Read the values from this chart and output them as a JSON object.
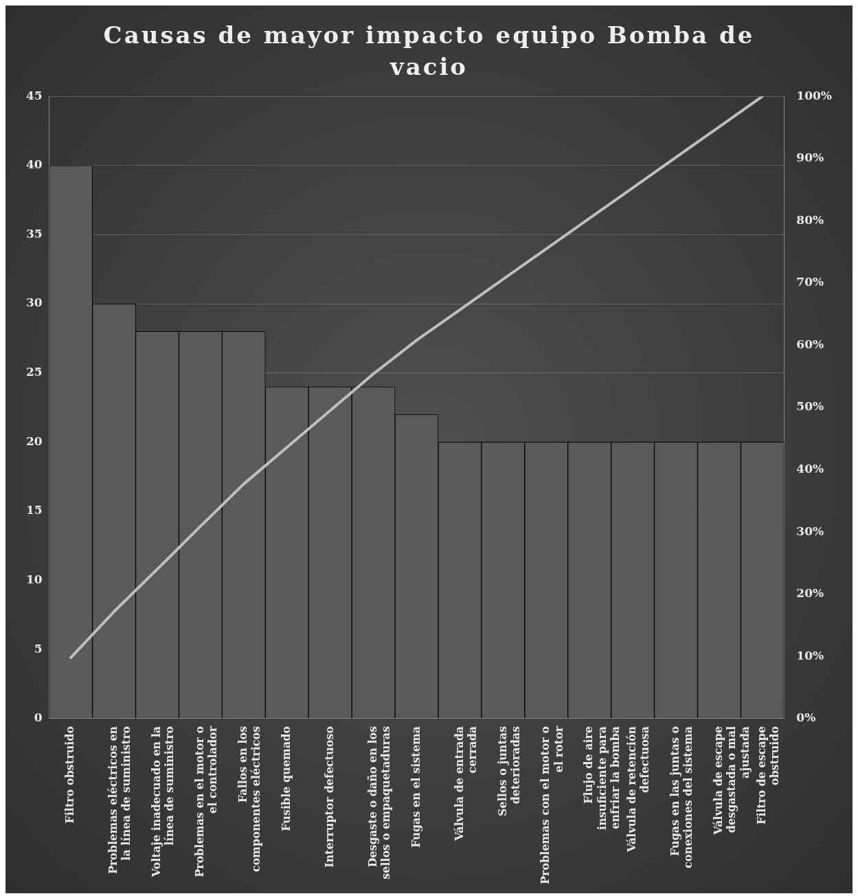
{
  "chart_data": {
    "type": "bar",
    "title": "Causas de mayor impacto equipo Bomba de vacio",
    "categories": [
      "Filtro obstruido",
      "Problemas eléctricos en la línea de suministro",
      "Voltaje inadecuado en la línea de suministro",
      "Problemas en el motor o el controlador",
      "Fallos en los componentes eléctricos",
      "Fusible quemado",
      "Interruptor defectuoso",
      "Desgaste o daño en los sellos o empaquetaduras",
      "Fugas en el sistema",
      "Válvula de entrada cerrada",
      "Sellos o juntas deterioradas",
      "Problemas con el motor o el rotor",
      "Flujo de aire insuficiente para enfriar la bomba",
      "Válvula de retención defectuosa",
      "Fugas en las juntas o conexiones del sistema",
      "Válvula de escape desgastada o mal ajustada",
      "Filtro de escape obstruido"
    ],
    "series": [
      {
        "color": "#5a5a5a",
        "values": [
          40,
          30,
          28,
          28,
          28,
          24,
          24,
          24,
          22,
          20,
          20,
          20,
          20,
          20,
          20,
          20,
          20
        ]
      },
      {
        "type": "line",
        "axis": "y2",
        "color": "#bfbfbf",
        "values": [
          9.8,
          17.2,
          24.0,
          30.9,
          37.7,
          43.6,
          49.5,
          55.4,
          60.8,
          65.7,
          70.6,
          75.5,
          80.4,
          85.3,
          90.2,
          95.1,
          100
        ]
      }
    ],
    "ylim": [
      0,
      45
    ],
    "yticks": [
      0,
      5,
      10,
      15,
      20,
      25,
      30,
      35,
      40,
      45
    ],
    "y2lim": [
      0,
      100
    ],
    "y2ticks": [
      {
        "value": 0,
        "label": "0%"
      },
      {
        "value": 10,
        "label": "10%"
      },
      {
        "value": 20,
        "label": "20%"
      },
      {
        "value": 30,
        "label": "30%"
      },
      {
        "value": 40,
        "label": "40%"
      },
      {
        "value": 50,
        "label": "50%"
      },
      {
        "value": 60,
        "label": "60%"
      },
      {
        "value": 70,
        "label": "70%"
      },
      {
        "value": 80,
        "label": "80%"
      },
      {
        "value": 90,
        "label": "90%"
      },
      {
        "value": 100,
        "label": "100%"
      }
    ],
    "grid": "y",
    "legend": false,
    "marker": "none"
  }
}
